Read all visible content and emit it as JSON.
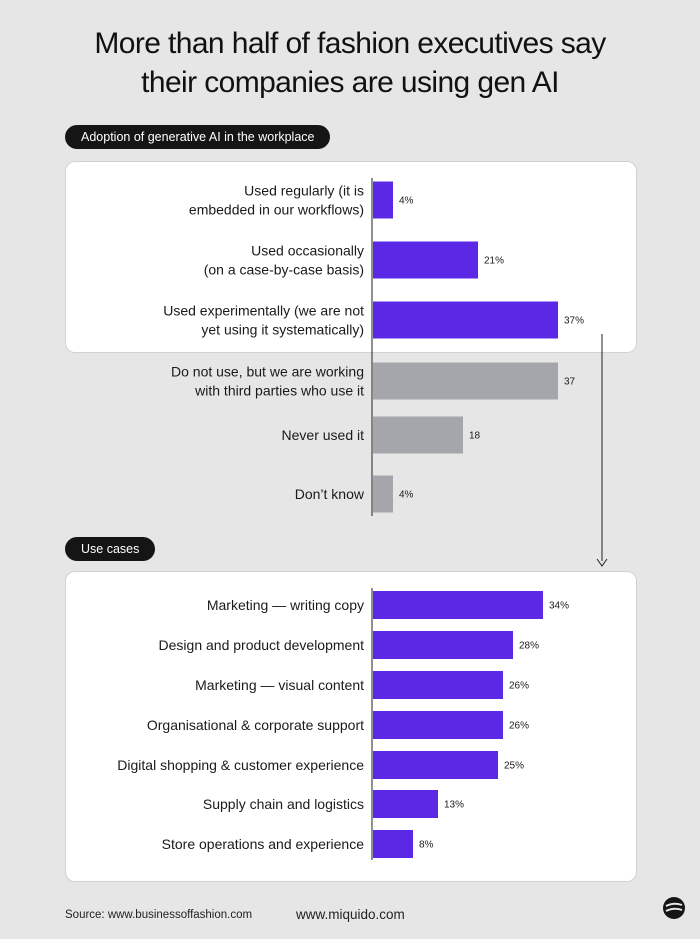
{
  "title_line1": "More than half of fashion executives say",
  "title_line2": "their companies are using gen AI",
  "colors": {
    "accent": "#5b28e6",
    "gray": "#a4a6ab",
    "pill_bg": "#151515",
    "background": "#e6e6e6",
    "card": "#ffffff"
  },
  "chart_data": [
    {
      "type": "bar",
      "orientation": "horizontal",
      "title": "Adoption of generative AI in the workplace",
      "categories": [
        [
          "Used regularly (it is",
          "embedded in our workflows)"
        ],
        [
          "Used occasionally",
          "(on a case-by-case basis)"
        ],
        [
          "Used experimentally (we are not",
          "yet using it systematically)"
        ],
        [
          "Do not use, but we are working",
          "with third parties who use it"
        ],
        [
          "Never used it"
        ],
        [
          "Don’t know"
        ]
      ],
      "values": [
        4,
        21,
        37,
        37,
        18,
        4
      ],
      "value_labels": [
        "4%",
        "21%",
        "37%",
        "37",
        "18",
        "4%"
      ],
      "highlight": [
        true,
        true,
        true,
        false,
        false,
        false
      ],
      "xlim": [
        0,
        40
      ]
    },
    {
      "type": "bar",
      "orientation": "horizontal",
      "title": "Use cases",
      "categories": [
        [
          "Marketing — writing copy"
        ],
        [
          "Design and product development"
        ],
        [
          "Marketing — visual content"
        ],
        [
          "Organisational & corporate support"
        ],
        [
          "Digital shopping & customer experience"
        ],
        [
          "Supply chain and logistics"
        ],
        [
          "Store operations and experience"
        ]
      ],
      "values": [
        34,
        28,
        26,
        26,
        25,
        13,
        8
      ],
      "value_labels": [
        "34%",
        "28%",
        "26%",
        "26%",
        "25%",
        "13%",
        "8%"
      ],
      "highlight": [
        true,
        true,
        true,
        true,
        true,
        true,
        true
      ],
      "xlim": [
        0,
        40
      ]
    }
  ],
  "footer": {
    "source": "Source: www.businessoffashion.com",
    "site": "www.miquido.com",
    "logo_icon": "miquido-logo-icon"
  }
}
